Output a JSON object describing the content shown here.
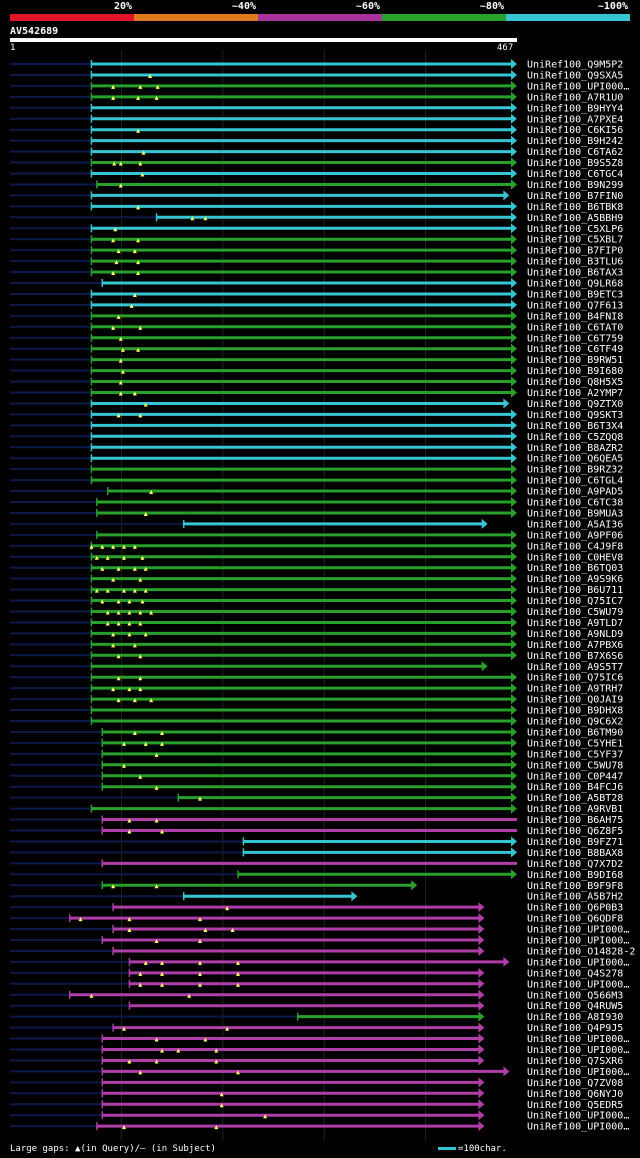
{
  "query": "AV542689",
  "legend": {
    "segments": [
      {
        "label": "20%",
        "color": "#e0152a"
      },
      {
        "label": "~40%",
        "color": "#e07a1f"
      },
      {
        "label": "~60%",
        "color": "#a8329c"
      },
      {
        "label": "~80%",
        "color": "#28a02c"
      },
      {
        "label": "~100%",
        "color": "#36c6d3"
      }
    ]
  },
  "ruler": {
    "start_label": "1",
    "end_label": "467"
  },
  "footer": {
    "gaps_text": "Large gaps: ▲(in Query)/— (in Subject)",
    "scale_text": "=100char."
  },
  "chart_data": {
    "type": "alignment",
    "query_length": 467,
    "colors": {
      "cyan": "#36c6d3",
      "green": "#28a02c",
      "purple": "#b03ea8",
      "navy": "#0b1a4a"
    },
    "hits": [
      {
        "id": "UniRef100_Q9M5P2",
        "color": "cyan",
        "start": 75,
        "end": 467,
        "arrow": true,
        "tri": []
      },
      {
        "id": "UniRef100_Q9SXA5",
        "color": "cyan",
        "start": 75,
        "end": 467,
        "arrow": true,
        "tri": [
          129
        ]
      },
      {
        "id": "UniRef100_UPI000…",
        "color": "green",
        "start": 75,
        "end": 467,
        "arrow": true,
        "tri": [
          95,
          120,
          136
        ]
      },
      {
        "id": "UniRef100_A7R1U0",
        "color": "green",
        "start": 75,
        "end": 467,
        "arrow": true,
        "tri": [
          95,
          118,
          135
        ]
      },
      {
        "id": "UniRef100_B9HYY4",
        "color": "cyan",
        "start": 75,
        "end": 467,
        "arrow": true,
        "tri": []
      },
      {
        "id": "UniRef100_A7PXE4",
        "color": "cyan",
        "start": 75,
        "end": 467,
        "arrow": true,
        "tri": []
      },
      {
        "id": "UniRef100_C6KI56",
        "color": "cyan",
        "start": 75,
        "end": 467,
        "arrow": true,
        "tri": [
          118
        ]
      },
      {
        "id": "UniRef100_B9H242",
        "color": "cyan",
        "start": 75,
        "end": 467,
        "arrow": true,
        "tri": []
      },
      {
        "id": "UniRef100_C6TA62",
        "color": "cyan",
        "start": 75,
        "end": 467,
        "arrow": true,
        "tri": [
          123
        ]
      },
      {
        "id": "UniRef100_B9S5Z8",
        "color": "green",
        "start": 75,
        "end": 467,
        "arrow": true,
        "tri": [
          96,
          102,
          120
        ]
      },
      {
        "id": "UniRef100_C6TGC4",
        "color": "cyan",
        "start": 75,
        "end": 467,
        "arrow": true,
        "tri": [
          122
        ]
      },
      {
        "id": "UniRef100_B9N299",
        "color": "green",
        "start": 80,
        "end": 467,
        "arrow": true,
        "tri": [
          102
        ]
      },
      {
        "id": "UniRef100_B7FIN0",
        "color": "cyan",
        "start": 75,
        "end": 460,
        "arrow": true,
        "tri": []
      },
      {
        "id": "UniRef100_B6TBK8",
        "color": "cyan",
        "start": 75,
        "end": 467,
        "arrow": true,
        "tri": [
          118
        ]
      },
      {
        "id": "UniRef100_A5BBH9",
        "color": "cyan",
        "start": 135,
        "end": 467,
        "arrow": true,
        "tri": [
          168,
          180
        ]
      },
      {
        "id": "UniRef100_C5XLP6",
        "color": "cyan",
        "start": 75,
        "end": 467,
        "arrow": true,
        "tri": [
          97
        ]
      },
      {
        "id": "UniRef100_C5XBL7",
        "color": "green",
        "start": 75,
        "end": 467,
        "arrow": true,
        "tri": [
          95,
          118
        ]
      },
      {
        "id": "UniRef100_B7FIP0",
        "color": "green",
        "start": 75,
        "end": 467,
        "arrow": true,
        "tri": [
          100,
          115
        ]
      },
      {
        "id": "UniRef100_B3TLU6",
        "color": "green",
        "start": 75,
        "end": 467,
        "arrow": true,
        "tri": [
          98,
          118
        ]
      },
      {
        "id": "UniRef100_B6TAX3",
        "color": "green",
        "start": 75,
        "end": 467,
        "arrow": true,
        "tri": [
          95,
          118
        ]
      },
      {
        "id": "UniRef100_Q9LR68",
        "color": "cyan",
        "start": 85,
        "end": 467,
        "arrow": true,
        "tri": []
      },
      {
        "id": "UniRef100_B9ETC3",
        "color": "cyan",
        "start": 75,
        "end": 467,
        "arrow": true,
        "tri": [
          115
        ]
      },
      {
        "id": "UniRef100_Q7F613",
        "color": "cyan",
        "start": 75,
        "end": 467,
        "arrow": true,
        "tri": [
          112
        ]
      },
      {
        "id": "UniRef100_B4FNI8",
        "color": "green",
        "start": 75,
        "end": 467,
        "arrow": true,
        "tri": [
          100
        ]
      },
      {
        "id": "UniRef100_C6TAT0",
        "color": "green",
        "start": 75,
        "end": 467,
        "arrow": true,
        "tri": [
          95,
          120
        ]
      },
      {
        "id": "UniRef100_C6T759",
        "color": "green",
        "start": 75,
        "end": 467,
        "arrow": true,
        "tri": [
          102
        ]
      },
      {
        "id": "UniRef100_C6TF49",
        "color": "green",
        "start": 75,
        "end": 467,
        "arrow": true,
        "tri": [
          104,
          118
        ]
      },
      {
        "id": "UniRef100_B9RW51",
        "color": "green",
        "start": 75,
        "end": 467,
        "arrow": true,
        "tri": [
          102
        ]
      },
      {
        "id": "UniRef100_B9I680",
        "color": "green",
        "start": 75,
        "end": 467,
        "arrow": true,
        "tri": [
          104
        ]
      },
      {
        "id": "UniRef100_Q8H5X5",
        "color": "green",
        "start": 75,
        "end": 467,
        "arrow": true,
        "tri": [
          102
        ]
      },
      {
        "id": "UniRef100_A2YMP7",
        "color": "green",
        "start": 75,
        "end": 467,
        "arrow": true,
        "tri": [
          102,
          115
        ]
      },
      {
        "id": "UniRef100_Q9ZTX0",
        "color": "cyan",
        "start": 75,
        "end": 460,
        "arrow": true,
        "tri": [
          125
        ]
      },
      {
        "id": "UniRef100_Q9SKT3",
        "color": "cyan",
        "start": 75,
        "end": 467,
        "arrow": true,
        "tri": [
          100,
          120
        ]
      },
      {
        "id": "UniRef100_B6T3X4",
        "color": "cyan",
        "start": 75,
        "end": 467,
        "arrow": true,
        "tri": []
      },
      {
        "id": "UniRef100_C5ZQQ8",
        "color": "cyan",
        "start": 75,
        "end": 467,
        "arrow": true,
        "tri": []
      },
      {
        "id": "UniRef100_B8AZR2",
        "color": "cyan",
        "start": 75,
        "end": 467,
        "arrow": true,
        "tri": []
      },
      {
        "id": "UniRef100_Q6QEA5",
        "color": "cyan",
        "start": 75,
        "end": 467,
        "arrow": true,
        "tri": []
      },
      {
        "id": "UniRef100_B9RZ32",
        "color": "green",
        "start": 75,
        "end": 467,
        "arrow": true,
        "tri": []
      },
      {
        "id": "UniRef100_C6TGL4",
        "color": "green",
        "start": 75,
        "end": 467,
        "arrow": true,
        "tri": []
      },
      {
        "id": "UniRef100_A9PAD5",
        "color": "green",
        "start": 90,
        "end": 467,
        "arrow": true,
        "tri": [
          130
        ]
      },
      {
        "id": "UniRef100_C6TC38",
        "color": "green",
        "start": 80,
        "end": 467,
        "arrow": true,
        "tri": []
      },
      {
        "id": "UniRef100_B9MUA3",
        "color": "green",
        "start": 80,
        "end": 467,
        "arrow": true,
        "tri": [
          125
        ]
      },
      {
        "id": "UniRef100_A5AI36",
        "color": "cyan",
        "start": 160,
        "end": 440,
        "arrow": true,
        "tri": []
      },
      {
        "id": "UniRef100_A9PF06",
        "color": "green",
        "start": 80,
        "end": 467,
        "arrow": true,
        "tri": []
      },
      {
        "id": "UniRef100_C4J9F8",
        "color": "green",
        "start": 75,
        "end": 467,
        "arrow": true,
        "tri": [
          75,
          85,
          95,
          105,
          115
        ]
      },
      {
        "id": "UniRef100_C0HEV8",
        "color": "green",
        "start": 75,
        "end": 467,
        "arrow": true,
        "tri": [
          80,
          90,
          105,
          122
        ]
      },
      {
        "id": "UniRef100_B6TQ03",
        "color": "green",
        "start": 75,
        "end": 467,
        "arrow": true,
        "tri": [
          85,
          100,
          115,
          125
        ]
      },
      {
        "id": "UniRef100_A9S9K6",
        "color": "green",
        "start": 75,
        "end": 467,
        "arrow": true,
        "tri": [
          95,
          120
        ]
      },
      {
        "id": "UniRef100_B6U711",
        "color": "green",
        "start": 75,
        "end": 467,
        "arrow": true,
        "tri": [
          80,
          90,
          105,
          115,
          125
        ]
      },
      {
        "id": "UniRef100_Q75IC7",
        "color": "green",
        "start": 75,
        "end": 467,
        "arrow": true,
        "tri": [
          85,
          100,
          110,
          122
        ]
      },
      {
        "id": "UniRef100_C5WU79",
        "color": "green",
        "start": 75,
        "end": 467,
        "arrow": true,
        "tri": [
          90,
          100,
          110,
          120,
          130
        ]
      },
      {
        "id": "UniRef100_A9TLD7",
        "color": "green",
        "start": 75,
        "end": 467,
        "arrow": true,
        "tri": [
          90,
          100,
          110,
          120
        ]
      },
      {
        "id": "UniRef100_A9NLD9",
        "color": "green",
        "start": 75,
        "end": 467,
        "arrow": true,
        "tri": [
          95,
          110,
          125
        ]
      },
      {
        "id": "UniRef100_A7PBX6",
        "color": "green",
        "start": 75,
        "end": 467,
        "arrow": true,
        "tri": [
          95,
          115
        ]
      },
      {
        "id": "UniRef100_B7X6S6",
        "color": "green",
        "start": 75,
        "end": 467,
        "arrow": true,
        "tri": [
          100,
          120
        ]
      },
      {
        "id": "UniRef100_A9S5T7",
        "color": "green",
        "start": 75,
        "end": 440,
        "arrow": true,
        "tri": []
      },
      {
        "id": "UniRef100_Q75IC6",
        "color": "green",
        "start": 75,
        "end": 467,
        "arrow": true,
        "tri": [
          100,
          120
        ]
      },
      {
        "id": "UniRef100_A9TRH7",
        "color": "green",
        "start": 75,
        "end": 467,
        "arrow": true,
        "tri": [
          95,
          110,
          120
        ]
      },
      {
        "id": "UniRef100_Q0JAI9",
        "color": "green",
        "start": 75,
        "end": 467,
        "arrow": true,
        "tri": [
          100,
          115,
          130
        ]
      },
      {
        "id": "UniRef100_B9DHX8",
        "color": "green",
        "start": 75,
        "end": 467,
        "arrow": true,
        "tri": []
      },
      {
        "id": "UniRef100_Q9C6X2",
        "color": "green",
        "start": 75,
        "end": 467,
        "arrow": true,
        "tri": []
      },
      {
        "id": "UniRef100_B6TM90",
        "color": "green",
        "start": 85,
        "end": 467,
        "arrow": true,
        "tri": [
          115,
          140
        ]
      },
      {
        "id": "UniRef100_C5YHE1",
        "color": "green",
        "start": 85,
        "end": 467,
        "arrow": true,
        "tri": [
          105,
          125,
          140
        ]
      },
      {
        "id": "UniRef100_C5YF37",
        "color": "green",
        "start": 85,
        "end": 467,
        "arrow": true,
        "tri": [
          135
        ]
      },
      {
        "id": "UniRef100_C5WU78",
        "color": "green",
        "start": 85,
        "end": 467,
        "arrow": true,
        "tri": [
          105
        ]
      },
      {
        "id": "UniRef100_C0P447",
        "color": "green",
        "start": 85,
        "end": 467,
        "arrow": true,
        "tri": [
          120
        ]
      },
      {
        "id": "UniRef100_B4FCJ6",
        "color": "green",
        "start": 85,
        "end": 467,
        "arrow": true,
        "tri": [
          135
        ]
      },
      {
        "id": "UniRef100_A5BT28",
        "color": "green",
        "start": 155,
        "end": 467,
        "arrow": true,
        "tri": [
          175
        ]
      },
      {
        "id": "UniRef100_A9RVB1",
        "color": "green",
        "start": 75,
        "end": 467,
        "arrow": true,
        "tri": []
      },
      {
        "id": "UniRef100_B6AH75",
        "color": "purple",
        "start": 85,
        "end": 467,
        "arrow": false,
        "tri": [
          110,
          135
        ]
      },
      {
        "id": "UniRef100_Q6Z8F5",
        "color": "purple",
        "start": 85,
        "end": 467,
        "arrow": false,
        "tri": [
          110,
          140
        ]
      },
      {
        "id": "UniRef100_B9FZ71",
        "color": "cyan",
        "start": 215,
        "end": 467,
        "arrow": true,
        "tri": []
      },
      {
        "id": "UniRef100_B8BAX8",
        "color": "cyan",
        "start": 215,
        "end": 467,
        "arrow": true,
        "tri": []
      },
      {
        "id": "UniRef100_Q7X7D2",
        "color": "purple",
        "start": 85,
        "end": 467,
        "arrow": false,
        "tri": []
      },
      {
        "id": "UniRef100_B9DI68",
        "color": "green",
        "start": 210,
        "end": 467,
        "arrow": true,
        "tri": []
      },
      {
        "id": "UniRef100_B9F9F8",
        "color": "green",
        "start": 85,
        "end": 375,
        "arrow": true,
        "tri": [
          95,
          135
        ]
      },
      {
        "id": "UniRef100_A5B7H2",
        "color": "cyan",
        "start": 160,
        "end": 320,
        "arrow": true,
        "tri": []
      },
      {
        "id": "UniRef100_Q6P0B3",
        "color": "purple",
        "start": 95,
        "end": 437,
        "arrow": true,
        "tri": [
          200
        ]
      },
      {
        "id": "UniRef100_Q6QDF8",
        "color": "purple",
        "start": 55,
        "end": 437,
        "arrow": true,
        "tri": [
          65,
          110,
          175
        ]
      },
      {
        "id": "UniRef100_UPI000…",
        "color": "purple",
        "start": 95,
        "end": 437,
        "arrow": true,
        "tri": [
          110,
          180,
          205
        ]
      },
      {
        "id": "UniRef100_UPI000…",
        "color": "purple",
        "start": 85,
        "end": 437,
        "arrow": true,
        "tri": [
          135,
          175
        ]
      },
      {
        "id": "UniRef100_O14828-2",
        "color": "purple",
        "start": 95,
        "end": 437,
        "arrow": true,
        "tri": []
      },
      {
        "id": "UniRef100_UPI000…",
        "color": "purple",
        "start": 110,
        "end": 460,
        "arrow": true,
        "tri": [
          125,
          140,
          175,
          210
        ]
      },
      {
        "id": "UniRef100_Q4S278",
        "color": "purple",
        "start": 110,
        "end": 437,
        "arrow": true,
        "tri": [
          120,
          140,
          175,
          210
        ]
      },
      {
        "id": "UniRef100_UPI000…",
        "color": "purple",
        "start": 110,
        "end": 437,
        "arrow": true,
        "tri": [
          120,
          140,
          175,
          210
        ]
      },
      {
        "id": "UniRef100_Q566M3",
        "color": "purple",
        "start": 55,
        "end": 437,
        "arrow": true,
        "tri": [
          75,
          165
        ]
      },
      {
        "id": "UniRef100_Q4RUW5",
        "color": "purple",
        "start": 110,
        "end": 437,
        "arrow": true,
        "tri": []
      },
      {
        "id": "UniRef100_A8I930",
        "color": "green",
        "start": 265,
        "end": 437,
        "arrow": true,
        "tri": []
      },
      {
        "id": "UniRef100_Q4P9J5",
        "color": "purple",
        "start": 95,
        "end": 437,
        "arrow": true,
        "tri": [
          105,
          200
        ]
      },
      {
        "id": "UniRef100_UPI000…",
        "color": "purple",
        "start": 85,
        "end": 437,
        "arrow": true,
        "tri": [
          135,
          180
        ]
      },
      {
        "id": "UniRef100_UPI000…",
        "color": "purple",
        "start": 85,
        "end": 437,
        "arrow": true,
        "tri": [
          140,
          155,
          190
        ]
      },
      {
        "id": "UniRef100_Q7SXR6",
        "color": "purple",
        "start": 85,
        "end": 437,
        "arrow": true,
        "tri": [
          110,
          135,
          190
        ]
      },
      {
        "id": "UniRef100_UPI000…",
        "color": "purple",
        "start": 85,
        "end": 460,
        "arrow": true,
        "tri": [
          120,
          210
        ]
      },
      {
        "id": "UniRef100_Q7ZV08",
        "color": "purple",
        "start": 85,
        "end": 437,
        "arrow": true,
        "tri": []
      },
      {
        "id": "UniRef100_Q6NYJ0",
        "color": "purple",
        "start": 85,
        "end": 437,
        "arrow": true,
        "tri": [
          195
        ]
      },
      {
        "id": "UniRef100_Q5EDR5",
        "color": "purple",
        "start": 85,
        "end": 437,
        "arrow": true,
        "tri": [
          195
        ]
      },
      {
        "id": "UniRef100_UPI000…",
        "color": "purple",
        "start": 85,
        "end": 437,
        "arrow": true,
        "tri": [
          235
        ]
      },
      {
        "id": "UniRef100_UPI000…",
        "color": "purple",
        "start": 80,
        "end": 437,
        "arrow": true,
        "tri": [
          105,
          190
        ]
      }
    ]
  }
}
